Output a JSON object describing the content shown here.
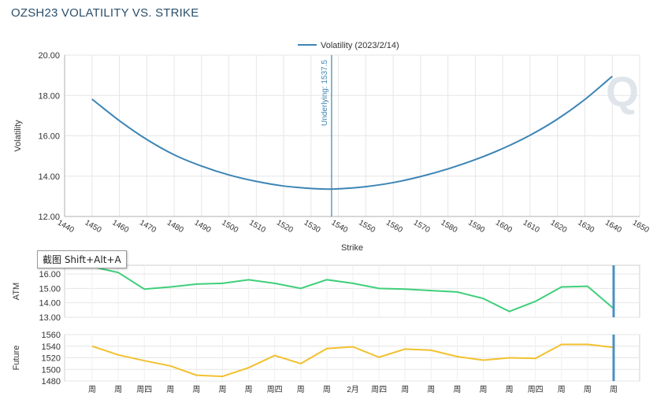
{
  "page": {
    "title": "OZSH23 VOLATILITY VS. STRIKE"
  },
  "tooltip": {
    "text": "截图 Shift+Alt+A"
  },
  "watermark": {
    "letter": "Q"
  },
  "colors": {
    "volatility": "#3d85b5",
    "underlying": "#3d85b5",
    "atm": "#3fcf7a",
    "future": "#f2c12e",
    "cursor": "#4a90c2",
    "grid": "#e6e6e6",
    "axis_text": "#333333"
  },
  "chart_data": [
    {
      "type": "line",
      "title": "",
      "legend": {
        "label": "Volatility (2023/2/14)",
        "placement": "top-center"
      },
      "xlabel": "Strike",
      "ylabel": "Volatility",
      "xlim": [
        1440,
        1650
      ],
      "ylim": [
        12,
        20
      ],
      "x_ticks": [
        "1440",
        "1450",
        "1460",
        "1470",
        "1480",
        "1490",
        "1500",
        "1510",
        "1520",
        "1530",
        "1540",
        "1550",
        "1560",
        "1570",
        "1580",
        "1590",
        "1600",
        "1610",
        "1620",
        "1630",
        "1640",
        "1650"
      ],
      "y_ticks": [
        "12.00",
        "14.00",
        "16.00",
        "18.00",
        "20.00"
      ],
      "grid": true,
      "series": [
        {
          "name": "Volatility (2023/2/14)",
          "x": [
            1450,
            1460,
            1470,
            1480,
            1490,
            1500,
            1510,
            1520,
            1530,
            1535,
            1540,
            1550,
            1560,
            1570,
            1580,
            1590,
            1600,
            1610,
            1620,
            1630,
            1640
          ],
          "y": [
            17.82,
            16.75,
            15.82,
            15.06,
            14.5,
            14.06,
            13.74,
            13.51,
            13.39,
            13.36,
            13.37,
            13.48,
            13.68,
            13.98,
            14.36,
            14.82,
            15.37,
            16.03,
            16.83,
            17.8,
            18.95
          ]
        }
      ],
      "annotations": [
        {
          "type": "vertical-line",
          "x": 1537.5,
          "label": "Underlying: 1537.5"
        }
      ]
    },
    {
      "type": "line",
      "ylabel": "ATM",
      "ylim": [
        13,
        16.6
      ],
      "y_ticks": [
        "13.00",
        "14.00",
        "15.00",
        "16.00"
      ],
      "grid": true,
      "series": [
        {
          "values": [
            16.5,
            16.1,
            14.95,
            15.1,
            15.3,
            15.35,
            15.6,
            15.35,
            15.0,
            15.6,
            15.35,
            15.0,
            14.95,
            14.85,
            14.75,
            14.3,
            13.4,
            14.1,
            15.1,
            15.15,
            13.6
          ]
        }
      ]
    },
    {
      "type": "line",
      "ylabel": "Future",
      "ylim": [
        1480,
        1560
      ],
      "y_ticks": [
        "1480",
        "1500",
        "1520",
        "1540",
        "1560"
      ],
      "grid": true,
      "x_tick_labels": [
        "周",
        "周",
        "周四",
        "周",
        "周",
        "周",
        "周",
        "周四",
        "周",
        "周",
        "2月",
        "周四",
        "周",
        "周",
        "周",
        "周",
        "周",
        "周四",
        "周",
        "周",
        "周"
      ],
      "series": [
        {
          "values": [
            1540,
            1525,
            1515,
            1506,
            1490,
            1488,
            1503,
            1524,
            1510,
            1536,
            1539,
            1521,
            1535,
            1533,
            1522,
            1516,
            1520,
            1519,
            1543,
            1543,
            1538
          ]
        }
      ]
    }
  ]
}
